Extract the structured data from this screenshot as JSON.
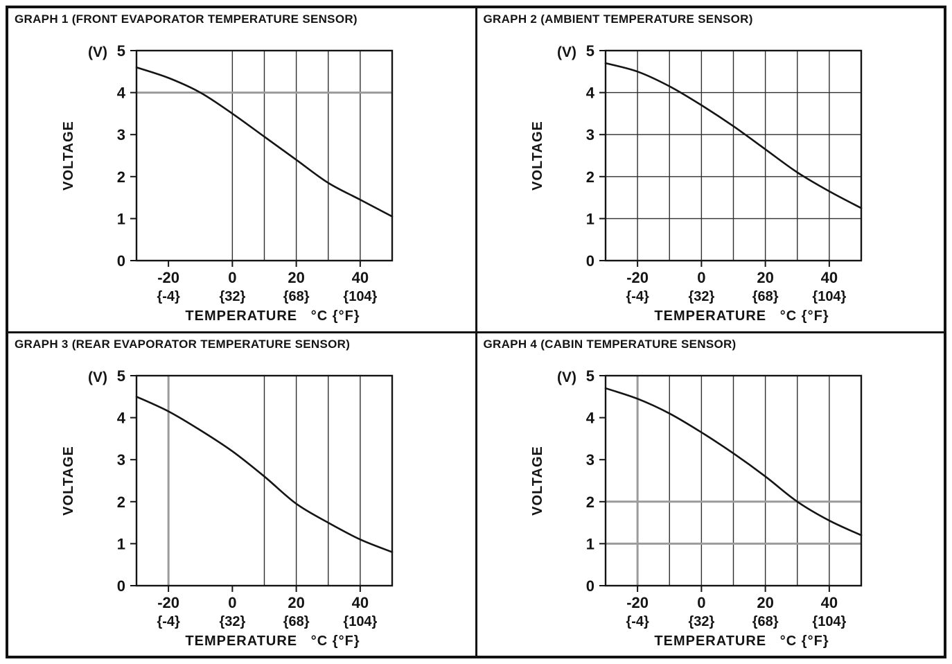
{
  "page": {
    "background": "#ffffff",
    "frame_border_color": "#111111"
  },
  "colors": {
    "line": "#141414",
    "grid": "#2e2e2e",
    "grid_emphasis": "#9b9b9b",
    "axis": "#141414",
    "text": "#141414"
  },
  "chart_data": [
    {
      "type": "line",
      "title": "GRAPH 1 (FRONT EVAPORATOR TEMPERATURE SENSOR)",
      "ylabel": "VOLTAGE",
      "y_unit": "(V)",
      "xlabel": "TEMPERATURE",
      "x_unit": "°C {°F}",
      "xlim": [
        -30,
        50
      ],
      "ylim": [
        0,
        5
      ],
      "y_ticks": [
        0,
        1,
        2,
        3,
        4,
        5
      ],
      "x_tick_values": [
        -20,
        0,
        20,
        40
      ],
      "x_tick_labels_c": [
        "-20",
        "0",
        "20",
        "40"
      ],
      "x_tick_labels_f": [
        "{-4}",
        "{32}",
        "{68}",
        "{104}"
      ],
      "x_grid": [
        0,
        10,
        20,
        30,
        40
      ],
      "x_grid_emphasis": [],
      "y_grid": [],
      "y_grid_emphasis": [
        4
      ],
      "x": [
        -30,
        -20,
        -10,
        0,
        10,
        20,
        30,
        40,
        50
      ],
      "y": [
        4.6,
        4.35,
        4.0,
        3.5,
        2.95,
        2.4,
        1.85,
        1.45,
        1.05
      ]
    },
    {
      "type": "line",
      "title": "GRAPH 2 (AMBIENT TEMPERATURE SENSOR)",
      "ylabel": "VOLTAGE",
      "y_unit": "(V)",
      "xlabel": "TEMPERATURE",
      "x_unit": "°C {°F}",
      "xlim": [
        -30,
        50
      ],
      "ylim": [
        0,
        5
      ],
      "y_ticks": [
        0,
        1,
        2,
        3,
        4,
        5
      ],
      "x_tick_values": [
        -20,
        0,
        20,
        40
      ],
      "x_tick_labels_c": [
        "-20",
        "0",
        "20",
        "40"
      ],
      "x_tick_labels_f": [
        "{-4}",
        "{32}",
        "{68}",
        "{104}"
      ],
      "x_grid": [
        -20,
        -10,
        0,
        10,
        20,
        30,
        40
      ],
      "x_grid_emphasis": [],
      "y_grid": [
        1,
        2,
        3,
        4
      ],
      "y_grid_emphasis": [],
      "x": [
        -30,
        -20,
        -10,
        0,
        10,
        20,
        30,
        40,
        50
      ],
      "y": [
        4.7,
        4.5,
        4.15,
        3.7,
        3.2,
        2.65,
        2.1,
        1.65,
        1.25
      ]
    },
    {
      "type": "line",
      "title": "GRAPH 3 (REAR EVAPORATOR TEMPERATURE SENSOR)",
      "ylabel": "VOLTAGE",
      "y_unit": "(V)",
      "xlabel": "TEMPERATURE",
      "x_unit": "°C {°F}",
      "xlim": [
        -30,
        50
      ],
      "ylim": [
        0,
        5
      ],
      "y_ticks": [
        0,
        1,
        2,
        3,
        4,
        5
      ],
      "x_tick_values": [
        -20,
        0,
        20,
        40
      ],
      "x_tick_labels_c": [
        "-20",
        "0",
        "20",
        "40"
      ],
      "x_tick_labels_f": [
        "{-4}",
        "{32}",
        "{68}",
        "{104}"
      ],
      "x_grid": [
        10,
        20,
        30,
        40
      ],
      "x_grid_emphasis": [
        -20
      ],
      "y_grid": [],
      "y_grid_emphasis": [],
      "x": [
        -30,
        -20,
        -10,
        0,
        10,
        20,
        30,
        40,
        50
      ],
      "y": [
        4.5,
        4.15,
        3.7,
        3.2,
        2.6,
        1.95,
        1.5,
        1.1,
        0.8
      ]
    },
    {
      "type": "line",
      "title": "GRAPH 4 (CABIN TEMPERATURE SENSOR)",
      "ylabel": "VOLTAGE",
      "y_unit": "(V)",
      "xlabel": "TEMPERATURE",
      "x_unit": "°C {°F}",
      "xlim": [
        -30,
        50
      ],
      "ylim": [
        0,
        5
      ],
      "y_ticks": [
        0,
        1,
        2,
        3,
        4,
        5
      ],
      "x_tick_values": [
        -20,
        0,
        20,
        40
      ],
      "x_tick_labels_c": [
        "-20",
        "0",
        "20",
        "40"
      ],
      "x_tick_labels_f": [
        "{-4}",
        "{32}",
        "{68}",
        "{104}"
      ],
      "x_grid": [
        -10,
        0,
        10,
        20,
        30,
        40
      ],
      "x_grid_emphasis": [
        -20
      ],
      "y_grid": [],
      "y_grid_emphasis": [
        1,
        2
      ],
      "x": [
        -30,
        -20,
        -10,
        0,
        10,
        20,
        30,
        40,
        50
      ],
      "y": [
        4.7,
        4.45,
        4.1,
        3.65,
        3.15,
        2.6,
        2.0,
        1.55,
        1.2
      ]
    }
  ]
}
